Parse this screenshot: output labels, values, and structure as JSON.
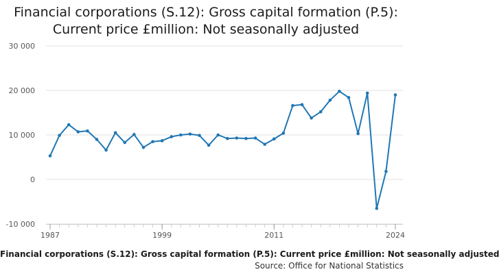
{
  "chart_data": {
    "type": "line",
    "title_lines": [
      "Financial corporations (S.12): Gross capital formation (P.5):",
      "Current price £million: Not seasonally adjusted"
    ],
    "x": [
      1987,
      1988,
      1989,
      1990,
      1991,
      1992,
      1993,
      1994,
      1995,
      1996,
      1997,
      1998,
      1999,
      2000,
      2001,
      2002,
      2003,
      2004,
      2005,
      2006,
      2007,
      2008,
      2009,
      2010,
      2011,
      2012,
      2013,
      2014,
      2015,
      2016,
      2017,
      2018,
      2019,
      2020,
      2021,
      2022,
      2023,
      2024
    ],
    "series": [
      {
        "name": "Financial corporations (S.12): Gross capital formation (P.5): Current price £million: Not seasonally adjusted",
        "color": "#1f77b4",
        "values": [
          5300,
          9900,
          12300,
          10700,
          10900,
          9000,
          6600,
          10500,
          8300,
          10100,
          7200,
          8500,
          8700,
          9600,
          10000,
          10200,
          9900,
          7700,
          10000,
          9200,
          9300,
          9200,
          9300,
          7900,
          9100,
          10400,
          16600,
          16800,
          13800,
          15200,
          17800,
          19800,
          18400,
          10300,
          19400,
          -6500,
          1800,
          19000
        ]
      }
    ],
    "x_ticks": [
      "1987",
      "1999",
      "2011",
      "2024"
    ],
    "y_ticks": [
      "30 000",
      "20 000",
      "10 000",
      "0",
      "-10 000"
    ],
    "y_tick_values": [
      30000,
      20000,
      10000,
      0,
      -10000
    ],
    "ylim": [
      -10000,
      30000
    ],
    "xlim": [
      1987,
      2024
    ],
    "xlabel": "",
    "ylabel": "",
    "grid": true,
    "series_caption": "Financial corporations (S.12): Gross capital formation (P.5): Current price £million: Not seasonally adjusted",
    "source_label": "Source: Office for National Statistics"
  }
}
